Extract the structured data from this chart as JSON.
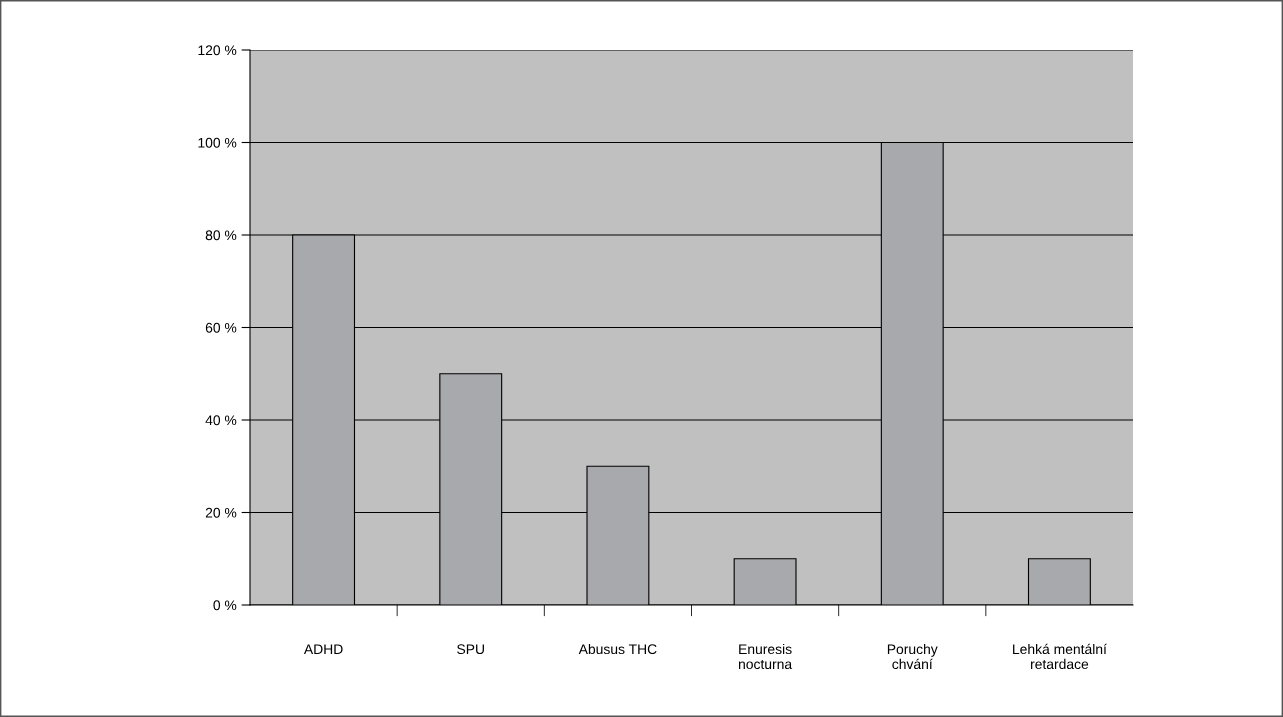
{
  "chart_data": {
    "type": "bar",
    "categories": [
      "ADHD",
      "SPU",
      "Abusus THC",
      "Enuresis\nnocturna",
      "Poruchy\nchvání",
      "Lehká mentální\nretardace"
    ],
    "values": [
      80,
      50,
      30,
      10,
      100,
      10
    ],
    "color": "#a8a9ad",
    "ylim": [
      0,
      120
    ],
    "yticks": [
      {
        "value": 0,
        "label": "0 %"
      },
      {
        "value": 20,
        "label": "20 %"
      },
      {
        "value": 40,
        "label": "40 %"
      },
      {
        "value": 60,
        "label": "60 %"
      },
      {
        "value": 80,
        "label": "80 %"
      },
      {
        "value": 100,
        "label": "100 %"
      },
      {
        "value": 120,
        "label": "120 %"
      }
    ],
    "grid": "y",
    "legend": false
  }
}
